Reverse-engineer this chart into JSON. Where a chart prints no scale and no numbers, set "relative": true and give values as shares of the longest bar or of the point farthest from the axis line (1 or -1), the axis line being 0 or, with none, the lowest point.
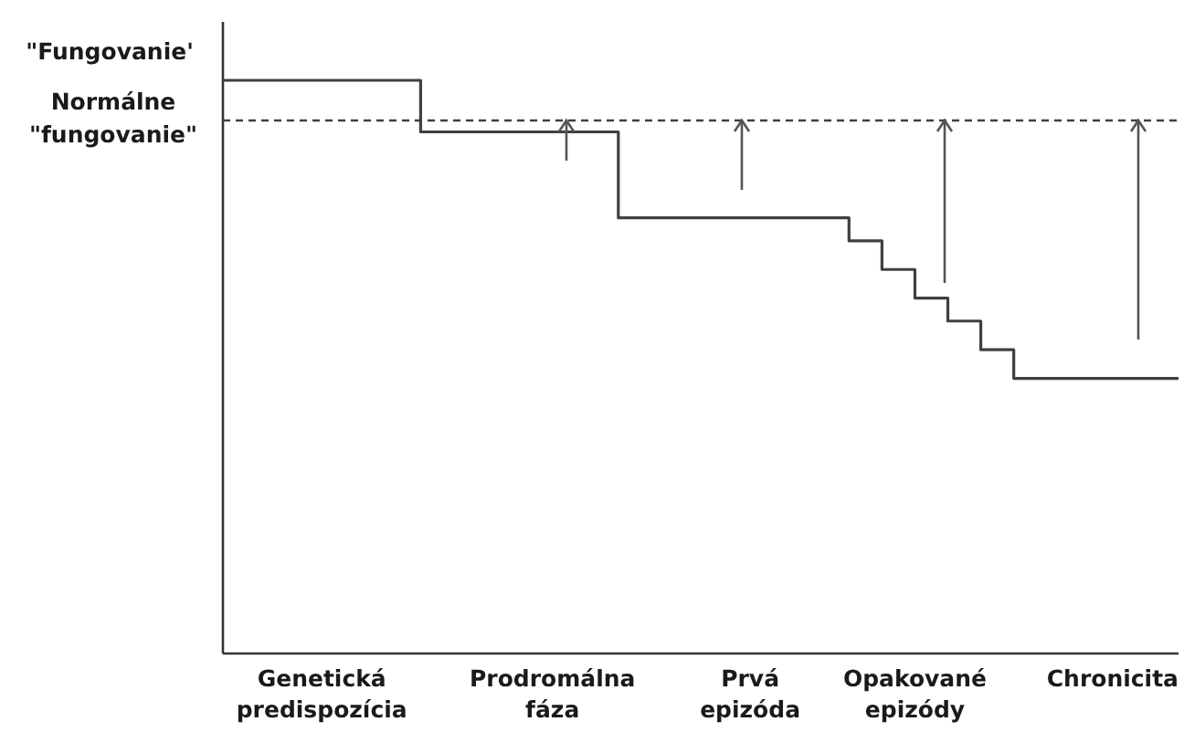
{
  "chart_data": {
    "type": "step",
    "relative": true,
    "categories": [
      null,
      null,
      null,
      "Genetická predispozícia",
      null,
      null,
      null,
      null,
      null,
      null,
      "Prodromálna fáza",
      null,
      null,
      null,
      null,
      null,
      "Prvá epizóda",
      null,
      null,
      null,
      null,
      "Opakované epizódy",
      null,
      null,
      null,
      null,
      null,
      "Chronicita",
      null,
      null
    ],
    "values": [
      1,
      1,
      1,
      1,
      1,
      1,
      0.91,
      0.91,
      0.91,
      0.91,
      0.91,
      0.91,
      0.76,
      0.76,
      0.76,
      0.76,
      0.76,
      0.76,
      0.76,
      0.72,
      0.67,
      0.62,
      0.58,
      0.53,
      0.48,
      0.48,
      0.48,
      0.48,
      0.48,
      0.48
    ],
    "color": "#404040",
    "ref_lines": [
      {
        "axis": "y",
        "value": 0.93,
        "label": "Normálne \"fungovanie\"",
        "line_style": "dashed",
        "color": "#404040"
      }
    ],
    "annotations": [
      "\"Fungovanie'"
    ]
  }
}
